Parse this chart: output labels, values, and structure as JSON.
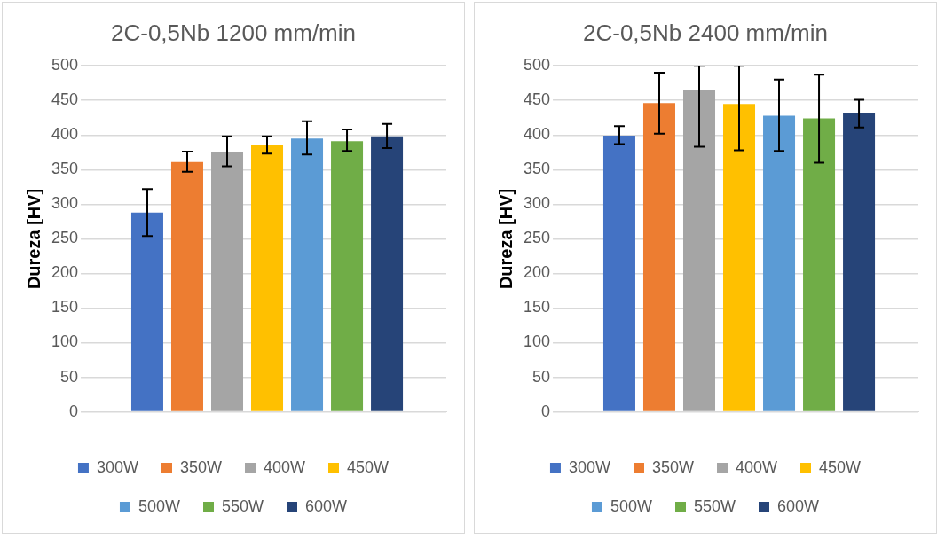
{
  "chart_data": [
    {
      "type": "bar",
      "title": "2C-0,5Nb 1200 mm/min",
      "ylabel": "Dureza [HV]",
      "categories": [
        null
      ],
      "ylim": [
        0,
        500
      ],
      "yticks": [
        0,
        50,
        100,
        150,
        200,
        250,
        300,
        350,
        400,
        450,
        500
      ],
      "grid": "y",
      "legend": "bottom",
      "series": [
        {
          "name": "300W",
          "color": "#4472c4",
          "values": [
            288
          ],
          "errors": [
            [
              254,
              322
            ]
          ]
        },
        {
          "name": "350W",
          "color": "#ed7d31",
          "values": [
            361
          ],
          "errors": [
            [
              347,
              376
            ]
          ]
        },
        {
          "name": "400W",
          "color": "#a5a5a5",
          "values": [
            376
          ],
          "errors": [
            [
              355,
              398
            ]
          ]
        },
        {
          "name": "450W",
          "color": "#ffc000",
          "values": [
            385
          ],
          "errors": [
            [
              373,
              398
            ]
          ]
        },
        {
          "name": "500W",
          "color": "#5b9bd5",
          "values": [
            395
          ],
          "errors": [
            [
              372,
              420
            ]
          ]
        },
        {
          "name": "550W",
          "color": "#70ad47",
          "values": [
            391
          ],
          "errors": [
            [
              377,
              408
            ]
          ]
        },
        {
          "name": "600W",
          "color": "#264478",
          "values": [
            398
          ],
          "errors": [
            [
              381,
              416
            ]
          ]
        }
      ]
    },
    {
      "type": "bar",
      "title": "2C-0,5Nb 2400 mm/min",
      "ylabel": "Dureza [HV]",
      "categories": [
        null
      ],
      "ylim": [
        0,
        500
      ],
      "yticks": [
        0,
        50,
        100,
        150,
        200,
        250,
        300,
        350,
        400,
        450,
        500
      ],
      "grid": "y",
      "legend": "bottom",
      "series": [
        {
          "name": "300W",
          "color": "#4472c4",
          "values": [
            399
          ],
          "errors": [
            [
              387,
              413
            ]
          ]
        },
        {
          "name": "350W",
          "color": "#ed7d31",
          "values": [
            446
          ],
          "errors": [
            [
              402,
              490
            ]
          ]
        },
        {
          "name": "400W",
          "color": "#a5a5a5",
          "values": [
            465
          ],
          "errors": [
            [
              383,
              500
            ]
          ]
        },
        {
          "name": "450W",
          "color": "#ffc000",
          "values": [
            445
          ],
          "errors": [
            [
              378,
              500
            ]
          ]
        },
        {
          "name": "500W",
          "color": "#5b9bd5",
          "values": [
            428
          ],
          "errors": [
            [
              377,
              480
            ]
          ]
        },
        {
          "name": "550W",
          "color": "#70ad47",
          "values": [
            424
          ],
          "errors": [
            [
              360,
              487
            ]
          ]
        },
        {
          "name": "600W",
          "color": "#264478",
          "values": [
            431
          ],
          "errors": [
            [
              411,
              451
            ]
          ]
        }
      ]
    }
  ]
}
